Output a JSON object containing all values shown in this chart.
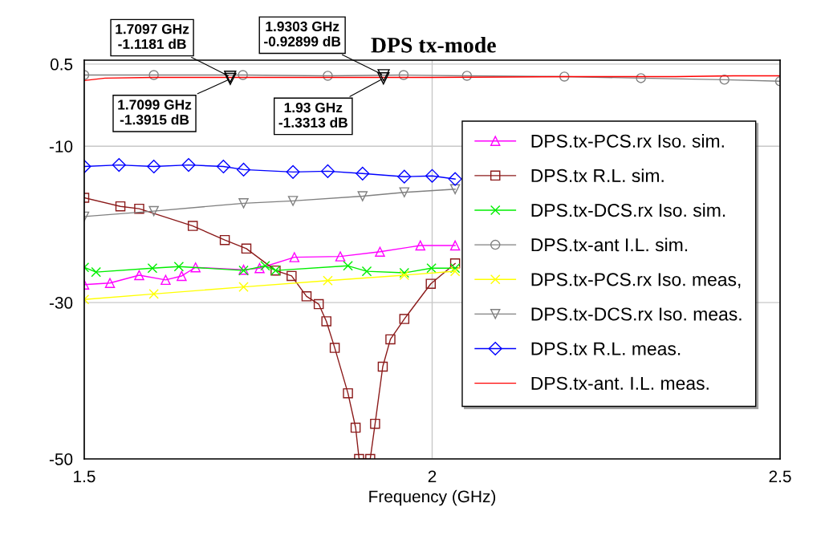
{
  "chart_data": {
    "type": "line",
    "title": "DPS tx-mode",
    "xlabel": "Frequency (GHz)",
    "xlim": [
      1.5,
      2.5
    ],
    "xticks": [
      1.5,
      2,
      2.5
    ],
    "ylim": [
      -50,
      1
    ],
    "yticks": [
      0.5,
      -10,
      -30,
      -50
    ],
    "grid": true,
    "legend": "right",
    "line_style": "solid",
    "series": [
      {
        "name": "DPS.tx-PCS.rx Iso. sim.",
        "color": "#ff00ff",
        "marker": "triangle",
        "x": [
          1.5,
          1.537,
          1.579,
          1.617,
          1.64,
          1.66,
          1.729,
          1.752,
          1.802,
          1.868,
          1.925,
          1.983,
          2.033
        ],
        "values": [
          -27.7,
          -27.5,
          -26.5,
          -27.1,
          -26.6,
          -25.5,
          -25.8,
          -25.6,
          -24.2,
          -24.1,
          -23.5,
          -22.7,
          -22.7
        ]
      },
      {
        "name": "DPS.tx R.L. sim.",
        "color": "#8b1a1a",
        "marker": "square",
        "x": [
          1.5,
          1.552,
          1.579,
          1.656,
          1.702,
          1.733,
          1.775,
          1.798,
          1.8195,
          1.837,
          1.848,
          1.86,
          1.879,
          1.89,
          1.895,
          1.911,
          1.918,
          1.929,
          1.94,
          1.96,
          1.998,
          2.033
        ],
        "values": [
          -16.6,
          -17.7,
          -18.0,
          -20.2,
          -22.0,
          -23.1,
          -25.9,
          -26.6,
          -29.2,
          -30.2,
          -32.4,
          -35.8,
          -41.6,
          -46.0,
          -50,
          -50,
          -45.5,
          -38.2,
          -34.7,
          -32.1,
          -27.6,
          -25.0
        ]
      },
      {
        "name": "DPS.tx-DCS.rx Iso. sim.",
        "color": "#00ee00",
        "marker": "cross",
        "x": [
          1.5,
          1.517,
          1.598,
          1.636,
          1.729,
          1.76,
          1.775,
          1.879,
          1.906,
          1.96,
          1.999,
          2.033
        ],
        "values": [
          -25.5,
          -26.1,
          -25.6,
          -25.4,
          -25.9,
          -25.3,
          -25.9,
          -25.3,
          -26.0,
          -26.2,
          -25.6,
          -25.6
        ]
      },
      {
        "name": "DPS.tx-ant I.L. sim.",
        "color": "#808080",
        "marker": "circle",
        "x": [
          1.5,
          1.6,
          1.728,
          1.85,
          1.959,
          2.05,
          2.19,
          2.3,
          2.42,
          2.5
        ],
        "values": [
          -0.9,
          -0.9,
          -0.9,
          -1.0,
          -0.9,
          -1.0,
          -1.1,
          -1.3,
          -1.5,
          -1.7
        ]
      },
      {
        "name": "DPS.tx-PCS.rx Iso. meas,",
        "color": "#ffff00",
        "marker": "cross",
        "x": [
          1.5,
          1.6,
          1.729,
          1.85,
          1.96,
          2.033
        ],
        "values": [
          -29.6,
          -28.9,
          -28.0,
          -27.2,
          -26.5,
          -26.0
        ]
      },
      {
        "name": "DPS.tx-DCS.rx Iso. meas.",
        "color": "#808080",
        "marker": "triangle_down",
        "x": [
          1.5,
          1.6,
          1.729,
          1.8,
          1.9,
          1.96,
          2.033
        ],
        "values": [
          -19.0,
          -18.3,
          -17.3,
          -17.0,
          -16.4,
          -15.9,
          -15.5
        ]
      },
      {
        "name": "DPS.tx R.L. meas.",
        "color": "#0000ff",
        "marker": "diamond",
        "x": [
          1.5,
          1.55,
          1.6,
          1.65,
          1.7,
          1.729,
          1.8,
          1.85,
          1.9,
          1.96,
          2.0,
          2.033
        ],
        "values": [
          -12.6,
          -12.4,
          -12.6,
          -12.4,
          -12.6,
          -13.0,
          -13.3,
          -13.2,
          -13.5,
          -13.9,
          -13.8,
          -14.2
        ]
      },
      {
        "name": "DPS.tx-ant. I.L. meas.",
        "color": "#ff0000",
        "marker": "none",
        "x": [
          1.5,
          1.53,
          1.6,
          1.8,
          2.0,
          2.2,
          2.35,
          2.433,
          2.5
        ],
        "values": [
          -1.6,
          -1.3,
          -1.2,
          -1.2,
          -1.2,
          -1.1,
          -1.1,
          -1.0,
          -1.0
        ]
      }
    ],
    "annotations": [
      {
        "text": "1.7097 GHz\n-1.1181 dB",
        "x": 1.7097,
        "y": -1.1181
      },
      {
        "text": "1.7099 GHz\n-1.3915 dB",
        "x": 1.7099,
        "y": -1.3915
      },
      {
        "text": "1.9303 GHz\n-0.92899 dB",
        "x": 1.9303,
        "y": -0.92899
      },
      {
        "text": "1.93 GHz\n-1.3313 dB",
        "x": 1.93,
        "y": -1.3313
      }
    ]
  }
}
